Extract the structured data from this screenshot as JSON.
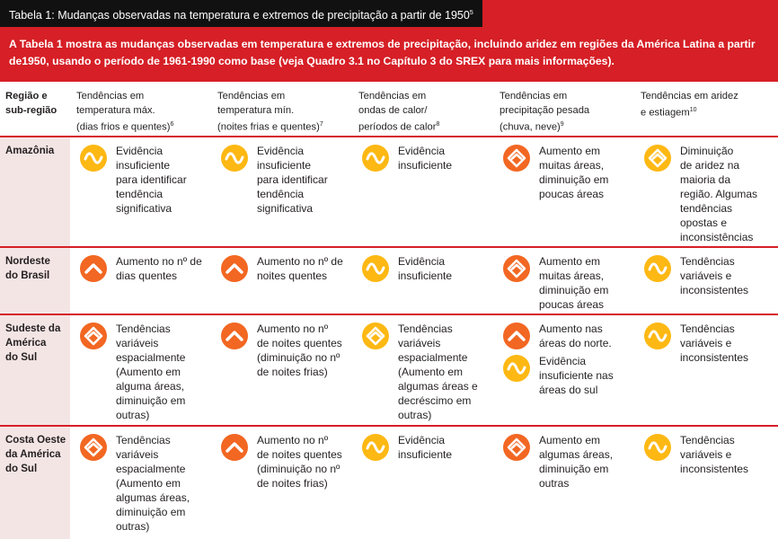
{
  "title": "Tabela 1: Mudanças observadas na temperatura e extremos de precipitação a partir de 1950",
  "title_sup": "5",
  "intro": "A Tabela 1 mostra as mudanças observadas em temperatura e extremos de precipitação, incluindo aridez em regiões da América Latina a partir de1950, usando o período de 1961-1990 como base (veja Quadro 3.1 no Capítulo 3 do SREX para mais informações).",
  "colors": {
    "red": "#d61f26",
    "yellow": "#fdb813",
    "orange": "#f26722",
    "regionBg": "#f4e5e5"
  },
  "headers": {
    "region": [
      "Região e",
      "sub-região"
    ],
    "tmax": [
      "Tendências em",
      "temperatura máx.",
      "(dias frios e quentes)"
    ],
    "tmax_sup": "6",
    "tmin": [
      "Tendências em",
      "temperatura mín.",
      "(noites frias e quentes)"
    ],
    "tmin_sup": "7",
    "heat": [
      "Tendências em",
      "ondas de calor/",
      "períodos de calor"
    ],
    "heat_sup": "8",
    "precip": [
      "Tendências em",
      "precipitação pesada",
      "(chuva, neve)"
    ],
    "precip_sup": "9",
    "dry": [
      "Tendências em aridez",
      "e estiagem"
    ],
    "dry_sup": "10"
  },
  "rows": [
    {
      "region": [
        "Amazônia"
      ],
      "cells": [
        {
          "icon": "wave-icon",
          "color": "yellow",
          "text": [
            "Evidência",
            "insuficiente",
            "para identificar",
            "tendência",
            "significativa"
          ]
        },
        {
          "icon": "wave-icon",
          "color": "yellow",
          "text": [
            "Evidência",
            "insuficiente",
            "para identificar",
            "tendência",
            "significativa"
          ]
        },
        {
          "icon": "wave-icon",
          "color": "yellow",
          "text": [
            "Evidência",
            "insuficiente"
          ]
        },
        {
          "icon": "diamond-icon",
          "color": "orange",
          "text": [
            "Aumento em",
            "muitas áreas,",
            "diminuição em",
            "poucas áreas"
          ]
        },
        {
          "icon": "diamond-icon",
          "color": "yellow",
          "text": [
            "Diminuição",
            "de aridez na",
            "maioria da",
            "região. Algumas",
            "tendências",
            "opostas e",
            "inconsistências"
          ]
        }
      ]
    },
    {
      "region": [
        "Nordeste",
        "do Brasil"
      ],
      "cells": [
        {
          "icon": "chevron-up-icon",
          "color": "orange",
          "text": [
            "Aumento no nº de",
            "dias quentes"
          ]
        },
        {
          "icon": "chevron-up-icon",
          "color": "orange",
          "text": [
            "Aumento no nº de",
            "noites quentes"
          ]
        },
        {
          "icon": "wave-icon",
          "color": "yellow",
          "text": [
            "Evidência",
            "insuficiente"
          ]
        },
        {
          "icon": "diamond-icon",
          "color": "orange",
          "text": [
            "Aumento em",
            "muitas áreas,",
            "diminuição em",
            "poucas áreas"
          ]
        },
        {
          "icon": "wave-icon",
          "color": "yellow",
          "text": [
            "Tendências",
            "variáveis e",
            "inconsistentes"
          ]
        }
      ]
    },
    {
      "region": [
        "Sudeste da",
        "América",
        "do Sul"
      ],
      "cells": [
        {
          "icon": "diamond-icon",
          "color": "orange",
          "text": [
            "Tendências",
            "variáveis",
            "espacialmente",
            "(Aumento em",
            "alguma áreas,",
            "diminuição em",
            "outras)"
          ]
        },
        {
          "icon": "chevron-up-icon",
          "color": "orange",
          "text": [
            "Aumento no nº",
            "de noites quentes",
            "(diminuição no nº",
            "de noites frias)"
          ]
        },
        {
          "icon": "diamond-icon",
          "color": "yellow",
          "text": [
            "Tendências",
            "variáveis",
            "espacialmente",
            "(Aumento em",
            "algumas áreas e",
            "decréscimo em",
            "outras)"
          ]
        },
        {
          "icon": "chevron-up-icon",
          "color": "orange",
          "text": [
            "Aumento nas",
            "áreas do norte."
          ],
          "icon2": "wave-icon",
          "color2": "yellow",
          "text2": [
            "Evidência",
            "insuficiente nas",
            "áreas do sul"
          ]
        },
        {
          "icon": "wave-icon",
          "color": "yellow",
          "text": [
            "Tendências",
            "variáveis e",
            "inconsistentes"
          ]
        }
      ]
    },
    {
      "region": [
        "Costa Oeste",
        "da América",
        "do Sul"
      ],
      "cells": [
        {
          "icon": "diamond-icon",
          "color": "orange",
          "text": [
            "Tendências",
            "variáveis",
            "espacialmente",
            "(Aumento em",
            "algumas áreas,",
            "diminuição em",
            "outras)"
          ]
        },
        {
          "icon": "chevron-up-icon",
          "color": "orange",
          "text": [
            "Aumento no nº",
            "de noites quentes",
            "(diminuição no nº",
            "de noites frias)"
          ]
        },
        {
          "icon": "wave-icon",
          "color": "yellow",
          "text": [
            "Evidência",
            "insuficiente"
          ]
        },
        {
          "icon": "diamond-icon",
          "color": "orange",
          "text": [
            "Aumento em",
            "algumas áreas,",
            "diminuição em",
            "outras"
          ]
        },
        {
          "icon": "wave-icon",
          "color": "yellow",
          "text": [
            "Tendências",
            "variáveis e",
            "inconsistentes"
          ]
        }
      ]
    }
  ]
}
